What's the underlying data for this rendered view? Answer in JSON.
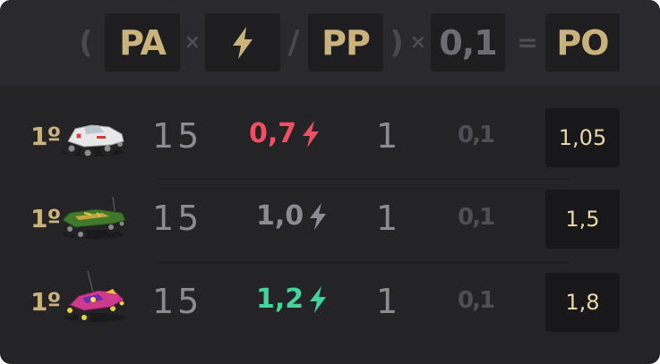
{
  "formula": {
    "open_paren": "(",
    "pa_label": "PA",
    "times": "×",
    "bolt_icon": "bolt-icon",
    "slash": "/",
    "pp_label": "PP",
    "close_paren": ")",
    "times2": "×",
    "constant": "0,1",
    "equals": "=",
    "po_label": "PO"
  },
  "colors": {
    "gold": "#c9b27c",
    "red": "#ee4f62",
    "green": "#44d39c",
    "grey": "#8b8b91",
    "dark_grey": "#4e4e53"
  },
  "rows": [
    {
      "position": "1º",
      "car": "white-monster-truck",
      "pa": "15",
      "factor": "0,7",
      "factor_color": "#ee4f62",
      "pp": "1",
      "constant": "0,1",
      "po": "1,05"
    },
    {
      "position": "1º",
      "car": "green-rally-car",
      "pa": "15",
      "factor": "1,0",
      "factor_color": "#8b8b91",
      "pp": "1",
      "constant": "0,1",
      "po": "1,5"
    },
    {
      "position": "1º",
      "car": "pink-buggy",
      "pa": "15",
      "factor": "1,2",
      "factor_color": "#44d39c",
      "pp": "1",
      "constant": "0,1",
      "po": "1,8"
    }
  ]
}
